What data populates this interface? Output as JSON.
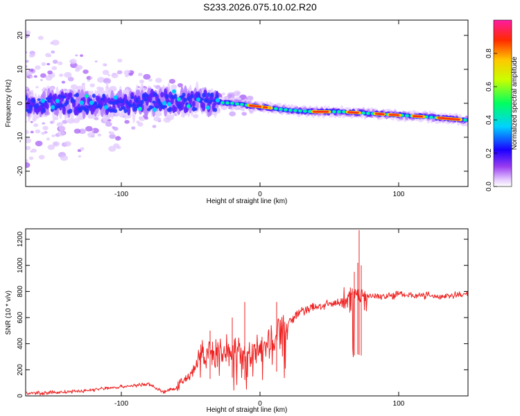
{
  "title": "S233.2026.075.10.02.R20",
  "colors": {
    "snr_line": "#ee2222",
    "ridge": "#5a1fff"
  },
  "chart_data": [
    {
      "type": "heatmap",
      "name": "spectrogram",
      "xlabel": "Height of straight line (km)",
      "ylabel": "Frequency (Hz)",
      "xlim": [
        -169,
        150
      ],
      "ylim": [
        -24.5,
        24.5
      ],
      "xticks": [
        "-100",
        "0",
        "100"
      ],
      "xtick_values": [
        -100,
        0,
        100
      ],
      "yticks": [
        "20",
        "10",
        "0",
        "-10",
        "-20"
      ],
      "ytick_values": [
        20,
        10,
        0,
        -10,
        -20
      ],
      "ridge": {
        "x": [
          -169,
          -120,
          -80,
          -40,
          -20,
          0,
          20,
          40,
          60,
          80,
          100,
          120,
          150
        ],
        "y": [
          0,
          0,
          0.5,
          0.5,
          0,
          -1,
          -2,
          -2.5,
          -2.5,
          -3,
          -3.5,
          -4,
          -5
        ]
      },
      "colorbar": {
        "label": "Normalized spectral amplitude",
        "ticks": [
          "0.0",
          "0.2",
          "0.4",
          "0.6",
          "0.8"
        ],
        "tick_values": [
          0.0,
          0.2,
          0.4,
          0.6,
          0.8
        ],
        "range": [
          0,
          1
        ]
      }
    },
    {
      "type": "line",
      "name": "snr",
      "xlabel": "Height of straight line (km)",
      "ylabel": "SNR (10 * v/v)",
      "xlim": [
        -169,
        150
      ],
      "ylim": [
        0,
        1280
      ],
      "xticks": [
        "-100",
        "0",
        "100"
      ],
      "xtick_values": [
        -100,
        0,
        100
      ],
      "yticks": [
        "0",
        "200",
        "400",
        "600",
        "800",
        "1000",
        "1200"
      ],
      "ytick_values": [
        0,
        200,
        400,
        600,
        800,
        1000,
        1200
      ],
      "x": [
        -169,
        -150,
        -130,
        -110,
        -90,
        -80,
        -70,
        -60,
        -50,
        -40,
        -30,
        -20,
        -10,
        0,
        10,
        20,
        30,
        40,
        50,
        60,
        65,
        70,
        72,
        75,
        80,
        90,
        100,
        110,
        120,
        130,
        140,
        150
      ],
      "values": [
        20,
        25,
        35,
        60,
        80,
        90,
        30,
        60,
        170,
        330,
        320,
        350,
        300,
        360,
        440,
        560,
        650,
        680,
        700,
        720,
        740,
        800,
        780,
        760,
        770,
        760,
        780,
        770,
        770,
        760,
        770,
        780
      ],
      "peaks": {
        "x": [
          -36,
          -20,
          -11,
          12,
          68,
          70.5,
          71.5,
          73
        ],
        "y": [
          500,
          600,
          720,
          720,
          950,
          1020,
          1270,
          1000
        ]
      }
    }
  ]
}
